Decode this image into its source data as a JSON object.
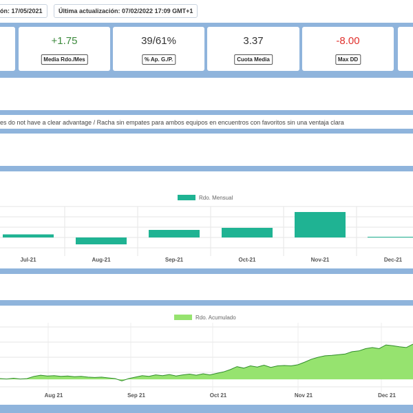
{
  "header": {
    "start_label": "ón: 17/05/2021",
    "update_label": "Última actualización: 07/02/2022 17:09 GMT+1"
  },
  "stats": [
    {
      "value": "+1.75",
      "label": "Media Rdo./Mes",
      "tone": "pos"
    },
    {
      "value": "39/61%",
      "label": "% Ap. G./P.",
      "tone": "neutral"
    },
    {
      "value": "3.37",
      "label": "Cuota Media",
      "tone": "neutral"
    },
    {
      "value": "-8.00",
      "label": "Max DD",
      "tone": "neg"
    }
  ],
  "description": "es do not have a clear advantage / Racha sin empates para ambos equipos en encuentros con favoritos sin una ventaja clara",
  "colors": {
    "band": "#8fb4dc",
    "bar": "#1fb393",
    "area_fill": "#96e36f",
    "area_line": "#2f8c2a",
    "positive": "#3c8a3c",
    "negative": "#e0302c"
  },
  "chart_data": [
    {
      "type": "bar",
      "legend": "Rdo. Mensual",
      "legend_position": "top",
      "categories": [
        "Jul-21",
        "Aug-21",
        "Sep-21",
        "Oct-21",
        "Nov-21",
        "Dec-21"
      ],
      "series": [
        {
          "name": "Rdo. Mensual",
          "values": [
            0.9,
            -2.0,
            2.2,
            2.8,
            7.4,
            0.2
          ]
        }
      ],
      "ylim": [
        -3,
        9
      ],
      "grid": true
    },
    {
      "type": "area",
      "legend": "Rdo. Acumulado",
      "legend_position": "top",
      "x_ticks": [
        "Aug 21",
        "Sep 21",
        "Oct 21",
        "Nov 21",
        "Dec 21"
      ],
      "series": [
        {
          "name": "Rdo. Acumulado",
          "values": [
            0.2,
            0.1,
            0.3,
            0.1,
            0.2,
            0.8,
            1.1,
            0.9,
            1.0,
            0.8,
            0.9,
            0.7,
            0.8,
            0.6,
            0.5,
            0.6,
            0.4,
            0.2,
            -0.4,
            0.2,
            0.6,
            1.0,
            0.8,
            1.2,
            1.0,
            1.3,
            0.9,
            1.2,
            1.4,
            1.1,
            1.5,
            1.2,
            1.6,
            2.0,
            2.6,
            3.4,
            3.0,
            3.6,
            3.3,
            3.8,
            3.2,
            3.6,
            3.7,
            3.6,
            3.9,
            4.6,
            5.4,
            5.9,
            6.3,
            6.4,
            6.6,
            6.8,
            7.4,
            7.6,
            8.2,
            8.5,
            8.2,
            9.2,
            9.0,
            8.7,
            8.5,
            9.4
          ]
        }
      ],
      "ylim": [
        -2,
        14
      ],
      "grid": true
    }
  ]
}
